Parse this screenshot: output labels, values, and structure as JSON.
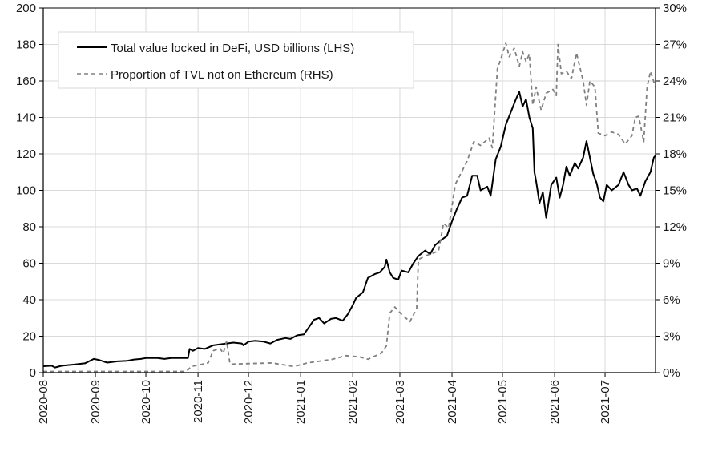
{
  "chart_data": {
    "type": "line",
    "title": "",
    "xlabel": "",
    "ylabel_left": "",
    "ylabel_right": "",
    "x_range": [
      "2020-08-01",
      "2021-07-31"
    ],
    "ylim_left": [
      0,
      200
    ],
    "ylim_right": [
      0,
      30
    ],
    "grid": true,
    "legend_position": "top-left",
    "x_ticks": [
      "2020-08",
      "2020-09",
      "2020-10",
      "2020-11",
      "2020-12",
      "2021-01",
      "2021-02",
      "2021-03",
      "2021-04",
      "2021-05",
      "2021-06",
      "2021-07"
    ],
    "y_ticks_left": [
      "0",
      "20",
      "40",
      "60",
      "80",
      "100",
      "120",
      "140",
      "160",
      "180",
      "200"
    ],
    "y_ticks_right": [
      "0%",
      "3%",
      "6%",
      "9%",
      "12%",
      "15%",
      "18%",
      "21%",
      "24%",
      "27%",
      "30%"
    ],
    "series": [
      {
        "name": "Total value locked in DeFi, USD billions (LHS)",
        "axis": "left",
        "style": "solid",
        "color": "#000000",
        "points": [
          [
            "2020-08-01",
            3.5
          ],
          [
            "2020-08-06",
            3.8
          ],
          [
            "2020-08-08",
            2.8
          ],
          [
            "2020-08-12",
            3.8
          ],
          [
            "2020-08-20",
            4.5
          ],
          [
            "2020-08-26",
            5.2
          ],
          [
            "2020-08-31",
            7.5
          ],
          [
            "2020-09-03",
            7
          ],
          [
            "2020-09-08",
            5.5
          ],
          [
            "2020-09-14",
            6.2
          ],
          [
            "2020-09-20",
            6.5
          ],
          [
            "2020-09-24",
            7.2
          ],
          [
            "2020-09-28",
            7.5
          ],
          [
            "2020-10-01",
            8
          ],
          [
            "2020-10-08",
            8
          ],
          [
            "2020-10-12",
            7.5
          ],
          [
            "2020-10-16",
            8
          ],
          [
            "2020-10-26",
            8
          ],
          [
            "2020-10-27",
            13
          ],
          [
            "2020-10-29",
            12
          ],
          [
            "2020-11-01",
            13.5
          ],
          [
            "2020-11-05",
            13
          ],
          [
            "2020-11-10",
            15
          ],
          [
            "2020-11-18",
            16
          ],
          [
            "2020-11-22",
            16.5
          ],
          [
            "2020-11-27",
            16
          ],
          [
            "2020-11-28",
            15
          ],
          [
            "2020-12-01",
            17
          ],
          [
            "2020-12-05",
            17.5
          ],
          [
            "2020-12-10",
            17
          ],
          [
            "2020-12-14",
            16
          ],
          [
            "2020-12-18",
            18
          ],
          [
            "2020-12-23",
            19
          ],
          [
            "2020-12-26",
            18.5
          ],
          [
            "2020-12-30",
            20.5
          ],
          [
            "2021-01-03",
            21
          ],
          [
            "2021-01-06",
            25
          ],
          [
            "2021-01-09",
            29
          ],
          [
            "2021-01-12",
            30
          ],
          [
            "2021-01-15",
            27
          ],
          [
            "2021-01-19",
            29.5
          ],
          [
            "2021-01-22",
            30
          ],
          [
            "2021-01-26",
            28.5
          ],
          [
            "2021-01-29",
            32
          ],
          [
            "2021-02-01",
            37
          ],
          [
            "2021-02-03",
            41
          ],
          [
            "2021-02-07",
            44
          ],
          [
            "2021-02-10",
            52
          ],
          [
            "2021-02-14",
            54
          ],
          [
            "2021-02-17",
            55
          ],
          [
            "2021-02-20",
            58
          ],
          [
            "2021-02-21",
            62
          ],
          [
            "2021-02-23",
            55
          ],
          [
            "2021-02-25",
            52
          ],
          [
            "2021-02-28",
            51
          ],
          [
            "2021-03-02",
            56
          ],
          [
            "2021-03-06",
            55
          ],
          [
            "2021-03-09",
            60
          ],
          [
            "2021-03-12",
            64
          ],
          [
            "2021-03-16",
            67
          ],
          [
            "2021-03-19",
            65
          ],
          [
            "2021-03-22",
            70
          ],
          [
            "2021-03-26",
            73
          ],
          [
            "2021-03-29",
            75
          ],
          [
            "2021-04-01",
            83
          ],
          [
            "2021-04-04",
            90
          ],
          [
            "2021-04-07",
            96
          ],
          [
            "2021-04-10",
            97
          ],
          [
            "2021-04-13",
            108
          ],
          [
            "2021-04-16",
            108
          ],
          [
            "2021-04-18",
            100
          ],
          [
            "2021-04-22",
            102
          ],
          [
            "2021-04-24",
            97
          ],
          [
            "2021-04-27",
            117
          ],
          [
            "2021-04-30",
            124
          ],
          [
            "2021-05-03",
            136
          ],
          [
            "2021-05-06",
            143
          ],
          [
            "2021-05-09",
            150
          ],
          [
            "2021-05-11",
            154
          ],
          [
            "2021-05-13",
            146
          ],
          [
            "2021-05-15",
            150
          ],
          [
            "2021-05-17",
            140
          ],
          [
            "2021-05-19",
            134
          ],
          [
            "2021-05-20",
            110
          ],
          [
            "2021-05-21",
            105
          ],
          [
            "2021-05-23",
            93
          ],
          [
            "2021-05-25",
            99
          ],
          [
            "2021-05-27",
            85
          ],
          [
            "2021-05-30",
            103
          ],
          [
            "2021-06-02",
            107
          ],
          [
            "2021-06-04",
            96
          ],
          [
            "2021-06-06",
            103
          ],
          [
            "2021-06-08",
            113
          ],
          [
            "2021-06-10",
            108
          ],
          [
            "2021-06-13",
            115
          ],
          [
            "2021-06-15",
            112
          ],
          [
            "2021-06-18",
            118
          ],
          [
            "2021-06-20",
            127
          ],
          [
            "2021-06-22",
            118
          ],
          [
            "2021-06-24",
            109
          ],
          [
            "2021-06-26",
            104
          ],
          [
            "2021-06-28",
            96
          ],
          [
            "2021-06-30",
            94
          ],
          [
            "2021-07-02",
            103
          ],
          [
            "2021-07-05",
            100
          ],
          [
            "2021-07-09",
            103
          ],
          [
            "2021-07-12",
            110
          ],
          [
            "2021-07-15",
            103
          ],
          [
            "2021-07-17",
            100
          ],
          [
            "2021-07-20",
            101
          ],
          [
            "2021-07-22",
            97
          ],
          [
            "2021-07-25",
            105
          ],
          [
            "2021-07-28",
            110
          ],
          [
            "2021-07-30",
            118
          ],
          [
            "2021-07-31",
            119
          ]
        ]
      },
      {
        "name": "Proportion of TVL not on Ethereum (RHS)",
        "axis": "right",
        "style": "dashed",
        "color": "#808080",
        "points": [
          [
            "2020-08-01",
            0.1
          ],
          [
            "2020-10-25",
            0.1
          ],
          [
            "2020-10-28",
            0.5
          ],
          [
            "2020-11-07",
            0.8
          ],
          [
            "2020-11-10",
            1.8
          ],
          [
            "2020-11-14",
            2.0
          ],
          [
            "2020-11-16",
            1.6
          ],
          [
            "2020-11-18",
            2.6
          ],
          [
            "2020-11-20",
            0.7
          ],
          [
            "2020-12-15",
            0.8
          ],
          [
            "2020-12-28",
            0.5
          ],
          [
            "2021-01-05",
            0.8
          ],
          [
            "2021-01-20",
            1.1
          ],
          [
            "2021-01-28",
            1.4
          ],
          [
            "2021-02-05",
            1.3
          ],
          [
            "2021-02-10",
            1.1
          ],
          [
            "2021-02-18",
            1.6
          ],
          [
            "2021-02-21",
            2.2
          ],
          [
            "2021-02-23",
            4.9
          ],
          [
            "2021-02-26",
            5.4
          ],
          [
            "2021-03-02",
            4.8
          ],
          [
            "2021-03-07",
            4.2
          ],
          [
            "2021-03-11",
            5.3
          ],
          [
            "2021-03-12",
            9.3
          ],
          [
            "2021-03-16",
            9.6
          ],
          [
            "2021-03-24",
            10
          ],
          [
            "2021-03-27",
            12.3
          ],
          [
            "2021-03-30",
            11.9
          ],
          [
            "2021-04-03",
            15.5
          ],
          [
            "2021-04-10",
            17.4
          ],
          [
            "2021-04-14",
            19.0
          ],
          [
            "2021-04-18",
            18.7
          ],
          [
            "2021-04-23",
            19.3
          ],
          [
            "2021-04-25",
            18.5
          ],
          [
            "2021-04-28",
            25.0
          ],
          [
            "2021-04-30",
            25.8
          ],
          [
            "2021-05-03",
            27.1
          ],
          [
            "2021-05-05",
            26.0
          ],
          [
            "2021-05-08",
            26.7
          ],
          [
            "2021-05-11",
            25.2
          ],
          [
            "2021-05-13",
            26.4
          ],
          [
            "2021-05-15",
            25.6
          ],
          [
            "2021-05-17",
            26.2
          ],
          [
            "2021-05-19",
            22.0
          ],
          [
            "2021-05-21",
            23.5
          ],
          [
            "2021-05-24",
            21.6
          ],
          [
            "2021-05-27",
            23.0
          ],
          [
            "2021-05-31",
            23.3
          ],
          [
            "2021-06-02",
            22.8
          ],
          [
            "2021-06-03",
            27.0
          ],
          [
            "2021-06-05",
            24.6
          ],
          [
            "2021-06-08",
            24.8
          ],
          [
            "2021-06-11",
            24.2
          ],
          [
            "2021-06-14",
            26.3
          ],
          [
            "2021-06-18",
            24.0
          ],
          [
            "2021-06-20",
            22.0
          ],
          [
            "2021-06-22",
            24.0
          ],
          [
            "2021-06-25",
            23.5
          ],
          [
            "2021-06-27",
            19.7
          ],
          [
            "2021-07-01",
            19.5
          ],
          [
            "2021-07-05",
            19.8
          ],
          [
            "2021-07-09",
            19.6
          ],
          [
            "2021-07-13",
            18.8
          ],
          [
            "2021-07-17",
            19.5
          ],
          [
            "2021-07-19",
            21.0
          ],
          [
            "2021-07-21",
            21.1
          ],
          [
            "2021-07-24",
            19.0
          ],
          [
            "2021-07-26",
            23.5
          ],
          [
            "2021-07-28",
            24.8
          ],
          [
            "2021-07-31",
            23.5
          ]
        ]
      }
    ]
  }
}
